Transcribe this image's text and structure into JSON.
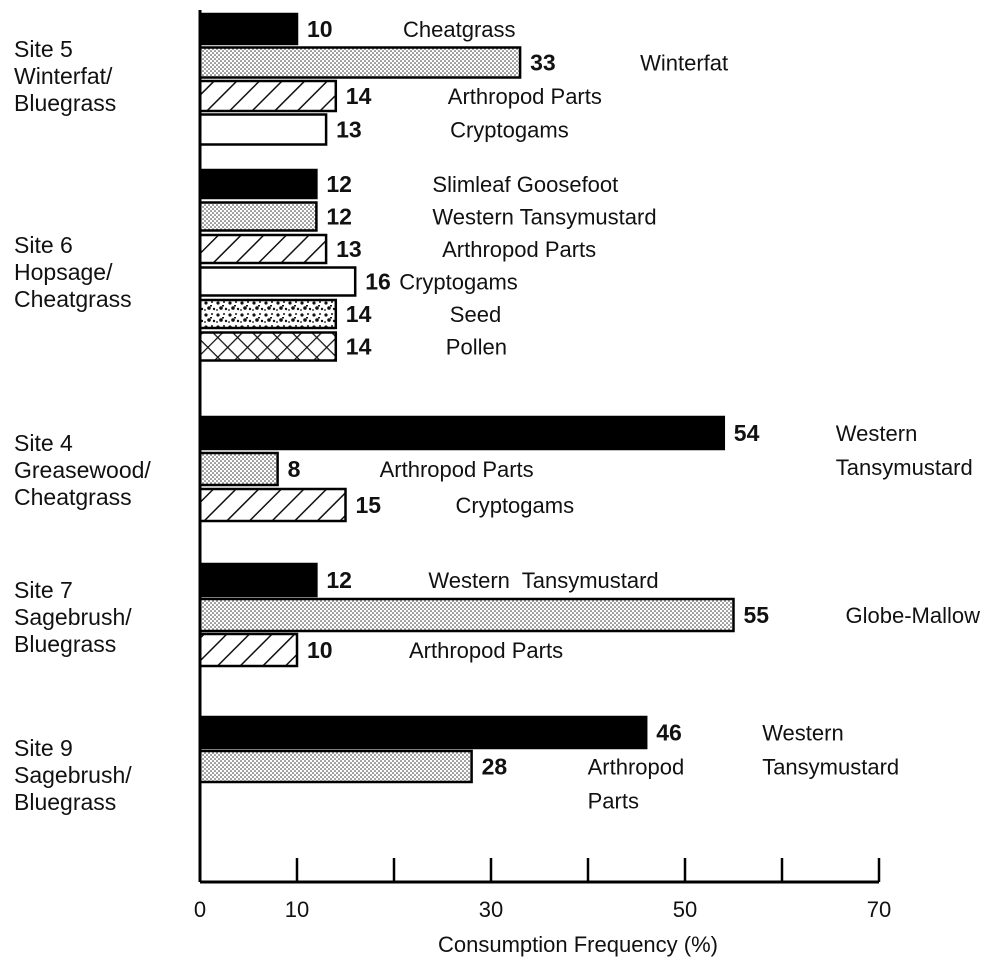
{
  "chart_data": {
    "type": "bar",
    "orientation": "horizontal",
    "title": "",
    "xlabel": "Consumption Frequency (%)",
    "ylabel": "",
    "xlim": [
      0,
      70
    ],
    "x_ticks": [
      0,
      10,
      30,
      50,
      70
    ],
    "x_minor_ticks": [
      20,
      40,
      60
    ],
    "grid": false,
    "legend": "none",
    "groups": [
      {
        "label_lines": [
          "Site 5",
          "Winterfat/",
          "Bluegrass"
        ],
        "bars": [
          {
            "category": [
              "Cheatgrass"
            ],
            "value": 10,
            "pattern": "solid"
          },
          {
            "category": [
              "Winterfat"
            ],
            "value": 33,
            "pattern": "stipple"
          },
          {
            "category": [
              "Arthropod Parts"
            ],
            "value": 14,
            "pattern": "hatch"
          },
          {
            "category": [
              "Cryptogams"
            ],
            "value": 13,
            "pattern": "open"
          }
        ]
      },
      {
        "label_lines": [
          "Site 6",
          "Hopsage/",
          "Cheatgrass"
        ],
        "bars": [
          {
            "category": [
              "Slimleaf Goosefoot"
            ],
            "value": 12,
            "pattern": "solid"
          },
          {
            "category": [
              "Western Tansymustard"
            ],
            "value": 12,
            "pattern": "stipple"
          },
          {
            "category": [
              "Arthropod Parts"
            ],
            "value": 13,
            "pattern": "hatch"
          },
          {
            "category": [
              "Cryptogams"
            ],
            "value": 16,
            "pattern": "open"
          },
          {
            "category": [
              "Seed"
            ],
            "value": 14,
            "pattern": "speckle"
          },
          {
            "category": [
              "Pollen"
            ],
            "value": 14,
            "pattern": "crosshatch"
          }
        ]
      },
      {
        "label_lines": [
          "Site 4",
          "Greasewood/",
          "Cheatgrass"
        ],
        "bars": [
          {
            "category": [
              "Western",
              "Tansymustard"
            ],
            "value": 54,
            "pattern": "solid"
          },
          {
            "category": [
              "Arthropod Parts"
            ],
            "value": 8,
            "pattern": "stipple"
          },
          {
            "category": [
              "Cryptogams"
            ],
            "value": 15,
            "pattern": "hatch"
          }
        ]
      },
      {
        "label_lines": [
          "Site 7",
          "Sagebrush/",
          "Bluegrass"
        ],
        "bars": [
          {
            "category": [
              "Western  Tansymustard"
            ],
            "value": 12,
            "pattern": "solid"
          },
          {
            "category": [
              "Globe-Mallow"
            ],
            "value": 55,
            "pattern": "stipple"
          },
          {
            "category": [
              "Arthropod Parts"
            ],
            "value": 10,
            "pattern": "hatch"
          }
        ]
      },
      {
        "label_lines": [
          "Site 9",
          "Sagebrush/",
          "Bluegrass"
        ],
        "bars": [
          {
            "category": [
              "Western",
              "Tansymustard"
            ],
            "value": 46,
            "pattern": "solid"
          },
          {
            "category": [
              "Arthropod",
              "Parts"
            ],
            "value": 28,
            "pattern": "stipple"
          }
        ]
      }
    ]
  }
}
